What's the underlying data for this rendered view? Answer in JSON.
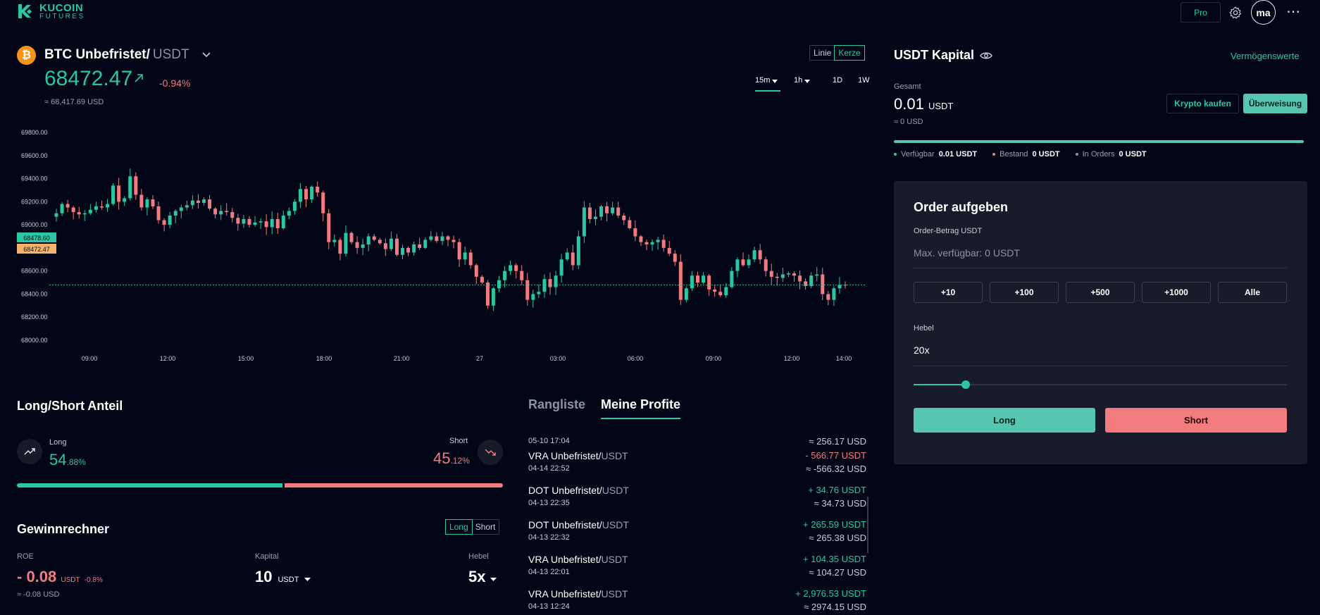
{
  "header": {
    "logo_line1": "KUCOIN",
    "logo_line2": "FUTURES",
    "pro_label": "Pro",
    "avatar_initials": "ma"
  },
  "market": {
    "pair_base": "BTC Unbefristet/",
    "pair_quote": "USDT",
    "price": "68472.47",
    "change": "-0.94%",
    "price_usd": "≈ 68,417.69 USD",
    "view_toggle": [
      "Linie",
      "Kerze"
    ],
    "active_view": "Kerze",
    "intervals": [
      "15m",
      "1h",
      "1D",
      "1W"
    ],
    "active_interval": "15m"
  },
  "chart_data": {
    "type": "candlestick",
    "y_ticks": [
      "69800.00",
      "69600.00",
      "69400.00",
      "69200.00",
      "69000.00",
      "68800.00",
      "68600.00",
      "68400.00",
      "68200.00",
      "68000.00"
    ],
    "ylim": [
      68000,
      69800
    ],
    "x_ticks": [
      "09:00",
      "12:00",
      "15:00",
      "18:00",
      "21:00",
      "27",
      "03:00",
      "06:00",
      "09:00",
      "12:00",
      "14:00"
    ],
    "price_markers": [
      {
        "label": "68478.60",
        "value": 68478.6,
        "color": "#2bc6a2"
      },
      {
        "label": "68472.47",
        "value": 68472.47,
        "color": "#f5b26b"
      }
    ],
    "closes": [
      69100,
      69180,
      69150,
      69110,
      69090,
      69100,
      69130,
      69160,
      69150,
      69180,
      69340,
      69200,
      69230,
      69420,
      69260,
      69150,
      69220,
      69160,
      69040,
      69000,
      69080,
      69120,
      69150,
      69170,
      69210,
      69190,
      69220,
      69140,
      69090,
      69120,
      69110,
      69060,
      69010,
      69050,
      69000,
      69020,
      69030,
      68980,
      69050,
      68970,
      69080,
      69120,
      69200,
      69310,
      69220,
      69330,
      69280,
      69100,
      68850,
      68870,
      68750,
      68930,
      68850,
      68800,
      68830,
      68900,
      68870,
      68840,
      68790,
      68880,
      68740,
      68800,
      68760,
      68830,
      68800,
      68870,
      68900,
      68860,
      68900,
      68870,
      68850,
      68700,
      68760,
      68650,
      68550,
      68500,
      68300,
      68450,
      68520,
      68600,
      68650,
      68600,
      68520,
      68350,
      68400,
      68420,
      68530,
      68460,
      68560,
      68700,
      68760,
      68650,
      68900,
      69150,
      69050,
      69070,
      69160,
      69100,
      69150,
      69080,
      69040,
      68970,
      68900,
      68850,
      68830,
      68850,
      68870,
      68800,
      68750,
      68680,
      68350,
      68450,
      68560,
      68500,
      68560,
      68440,
      68420,
      68390,
      68460,
      68600,
      68700,
      68650,
      68700,
      68780,
      68700,
      68600,
      68550,
      68540,
      68570,
      68580,
      68560,
      68510,
      68470,
      68560,
      68570,
      68400,
      68350,
      68450,
      68480,
      68479
    ]
  },
  "long_short": {
    "title": "Long/Short Anteil",
    "long_label": "Long",
    "long_int": "54",
    "long_dec": ".88%",
    "long_pct": 54.88,
    "short_label": "Short",
    "short_int": "45",
    "short_dec": ".12%",
    "short_pct": 45.12
  },
  "calculator": {
    "title": "Gewinnrechner",
    "toggle": [
      "Long",
      "Short"
    ],
    "active": "Long",
    "roe_label": "ROE",
    "roe_value": "- 0.08",
    "roe_unit": "USDT",
    "roe_pct": "-0.8%",
    "roe_usd": "≈ -0.08 USD",
    "kapital_label": "Kapital",
    "kapital_value": "10",
    "kapital_unit": "USDT",
    "hebel_label": "Hebel",
    "hebel_value": "5x"
  },
  "ranking": {
    "tabs": [
      "Rangliste",
      "Meine Profite"
    ],
    "active_tab": "Meine Profite",
    "rows": [
      {
        "base": "",
        "quote": "",
        "date": "05-10 17:04",
        "pnl": "",
        "pnl_sign": "pos",
        "usd": "≈ 256.17 USD"
      },
      {
        "base": "VRA Unbefristet/",
        "quote": "USDT",
        "date": "04-14 22:52",
        "pnl": "- 566.77 USDT",
        "pnl_sign": "neg",
        "usd": "≈ -566.32 USD"
      },
      {
        "base": "DOT Unbefristet/",
        "quote": "USDT",
        "date": "04-13 22:35",
        "pnl": "+ 34.76 USDT",
        "pnl_sign": "pos",
        "usd": "≈ 34.73 USD"
      },
      {
        "base": "DOT Unbefristet/",
        "quote": "USDT",
        "date": "04-13 22:32",
        "pnl": "+ 265.59 USDT",
        "pnl_sign": "pos",
        "usd": "≈ 265.38 USD"
      },
      {
        "base": "VRA Unbefristet/",
        "quote": "USDT",
        "date": "04-13 22:01",
        "pnl": "+ 104.35 USDT",
        "pnl_sign": "pos",
        "usd": "≈ 104.27 USD"
      },
      {
        "base": "VRA Unbefristet/",
        "quote": "USDT",
        "date": "04-13 12:24",
        "pnl": "+ 2,976.53 USDT",
        "pnl_sign": "pos",
        "usd": "≈ 2974.15 USD"
      }
    ]
  },
  "capital": {
    "title": "USDT Kapital",
    "vermoegen_link": "Vermögenswerte",
    "gesamt_label": "Gesamt",
    "gesamt_value": "0.01",
    "gesamt_unit": "USDT",
    "gesamt_usd": "≈ 0 USD",
    "buy_label": "Krypto kaufen",
    "transfer_label": "Überweisung",
    "legend": [
      {
        "label": "Verfügbar",
        "value": "0.01 USDT",
        "color": "#2bc6a2"
      },
      {
        "label": "Bestand",
        "value": "0 USDT",
        "color": "#f27b7f"
      },
      {
        "label": "In Orders",
        "value": "0 USDT",
        "color": "#8c93a4"
      }
    ]
  },
  "order": {
    "title": "Order aufgeben",
    "amount_label": "Order-Betrag USDT",
    "amount_placeholder": "Max. verfügbar: 0 USDT",
    "quick_amounts": [
      "+10",
      "+100",
      "+500",
      "+1000",
      "Alle"
    ],
    "hebel_label": "Hebel",
    "hebel_value": "20x",
    "slider_fraction": 0.14,
    "long_label": "Long",
    "short_label": "Short"
  }
}
